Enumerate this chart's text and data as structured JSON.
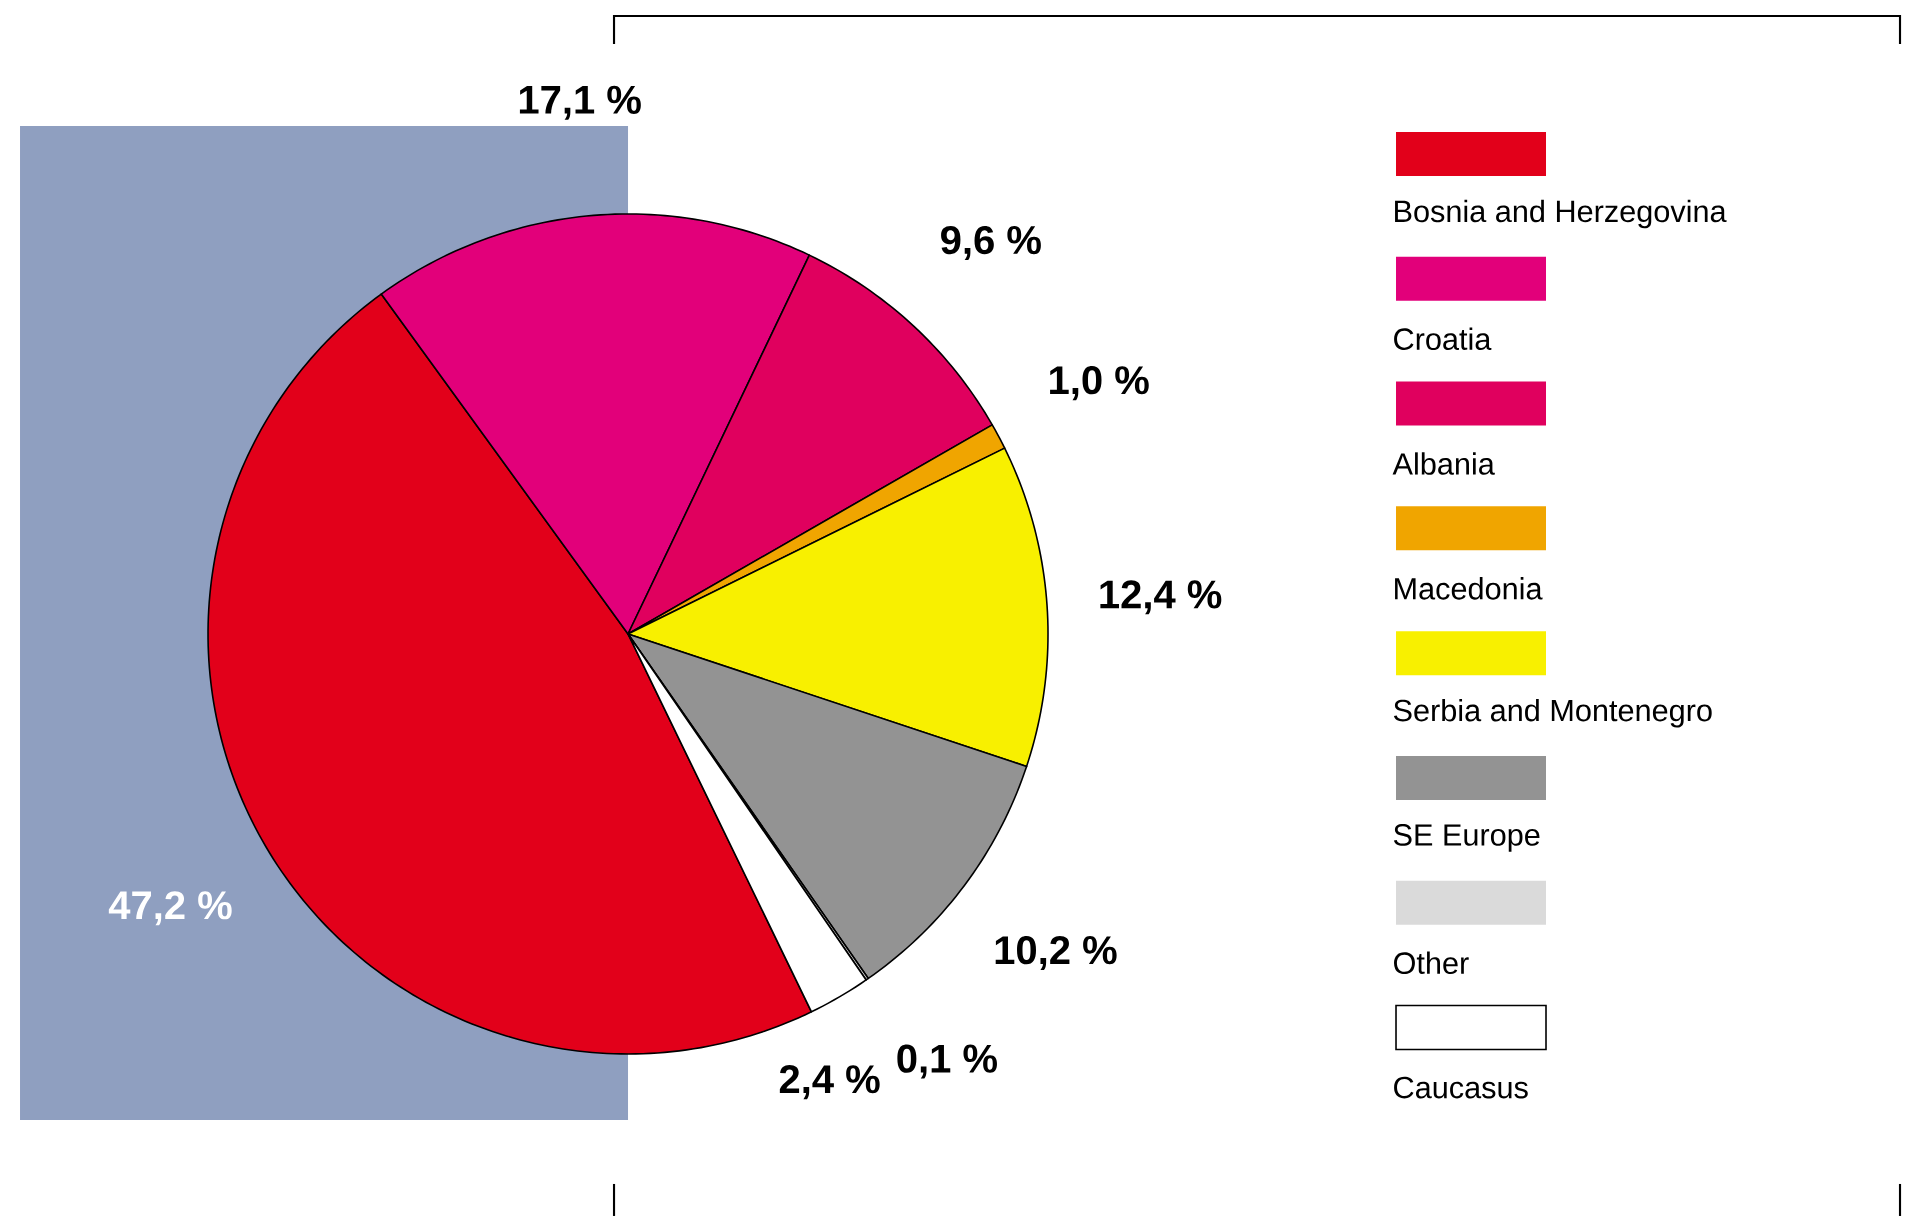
{
  "chart_data": {
    "type": "pie",
    "legend": "right",
    "categories": [
      "Bosnia and Herzegovina",
      "Croatia",
      "Albania",
      "Macedonia",
      "Serbia and Montenegro",
      "SE Europe",
      "Other",
      "Caucasus"
    ],
    "values": [
      47.2,
      17.1,
      9.6,
      1.0,
      12.4,
      10.2,
      0.1,
      2.4
    ],
    "colors": [
      "#e2001a",
      "#e2007a",
      "#e0005e",
      "#f0a500",
      "#f8f000",
      "#939393",
      "#dadada",
      "#ffffff"
    ],
    "value_labels": [
      "47,2 %",
      "17,1 %",
      "9,6 %",
      "1,0 %",
      "12,4 %",
      "10,2 %",
      "0,1 %",
      "2,4 %"
    ]
  }
}
